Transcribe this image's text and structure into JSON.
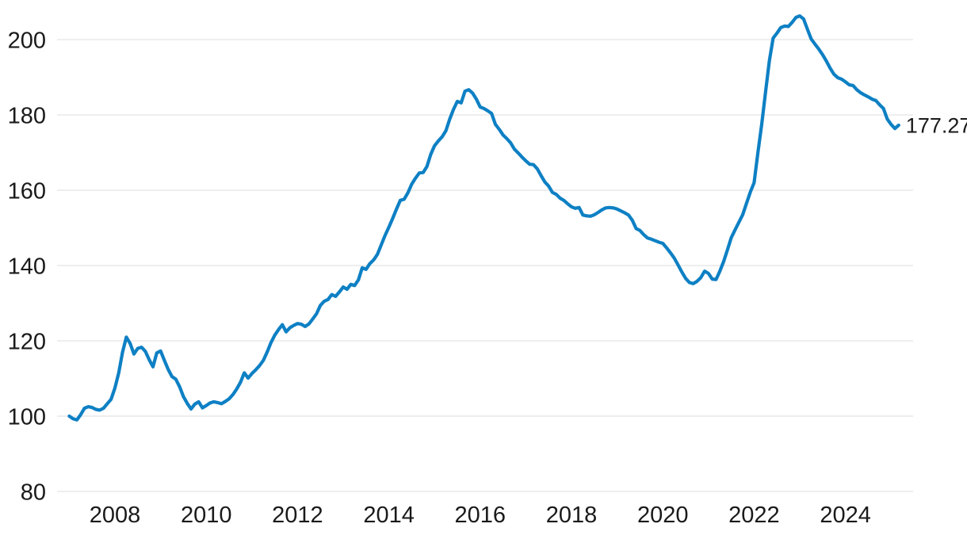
{
  "chart_data": {
    "type": "line",
    "title": "",
    "xlabel": "",
    "ylabel": "",
    "legend": "none",
    "grid": "horizontal",
    "frequency": "monthly",
    "start": {
      "year": 2007,
      "month": 1
    },
    "end": {
      "year": 2025,
      "month": 3
    },
    "x_ticks": [
      "2008",
      "2010",
      "2012",
      "2014",
      "2016",
      "2018",
      "2020",
      "2022",
      "2024"
    ],
    "y_ticks": [
      "80",
      "100",
      "120",
      "140",
      "160",
      "180",
      "200"
    ],
    "ylim": [
      80,
      207
    ],
    "xlim_years": [
      2006.9,
      2025.5
    ],
    "last_value_label": "177.27",
    "colors": {
      "line": "#0e80c4",
      "grid": "#e9e9e9",
      "text": "#1a1a1a",
      "background": "#ffffff"
    },
    "values": [
      100.0,
      99.3,
      99.0,
      100.4,
      102.1,
      102.5,
      102.3,
      101.8,
      101.6,
      102.1,
      103.3,
      104.5,
      107.5,
      111.5,
      117.0,
      121.0,
      119.3,
      116.5,
      118.0,
      118.3,
      117.2,
      115.0,
      113.1,
      116.8,
      117.3,
      114.8,
      112.4,
      110.5,
      109.8,
      107.8,
      105.2,
      103.4,
      101.9,
      103.2,
      103.8,
      102.2,
      102.8,
      103.5,
      103.8,
      103.6,
      103.3,
      103.9,
      104.6,
      105.7,
      107.2,
      109.0,
      111.5,
      110.1,
      111.3,
      112.3,
      113.4,
      114.8,
      117.0,
      119.5,
      121.5,
      123.0,
      124.3,
      122.4,
      123.5,
      124.1,
      124.6,
      124.4,
      123.8,
      124.5,
      125.8,
      127.2,
      129.4,
      130.5,
      131.0,
      132.3,
      131.8,
      133.0,
      134.3,
      133.7,
      135.0,
      134.7,
      136.2,
      139.4,
      139.0,
      140.5,
      141.5,
      143.0,
      145.5,
      148.0,
      150.2,
      152.5,
      155.0,
      157.3,
      157.6,
      159.3,
      161.6,
      163.2,
      164.6,
      164.7,
      166.3,
      169.5,
      171.8,
      173.1,
      174.2,
      175.8,
      178.9,
      181.5,
      183.6,
      183.2,
      186.3,
      186.7,
      185.8,
      184.2,
      182.1,
      181.7,
      181.1,
      180.4,
      177.5,
      176.2,
      174.7,
      173.7,
      172.6,
      170.9,
      169.9,
      168.8,
      167.8,
      166.9,
      166.8,
      165.7,
      163.9,
      162.2,
      161.1,
      159.4,
      158.9,
      157.9,
      157.3,
      156.4,
      155.6,
      155.2,
      155.4,
      153.4,
      153.2,
      153.1,
      153.5,
      154.1,
      154.8,
      155.3,
      155.4,
      155.3,
      155.0,
      154.5,
      154.0,
      153.4,
      152.0,
      149.8,
      149.3,
      148.2,
      147.3,
      147.0,
      146.6,
      146.2,
      145.9,
      144.7,
      143.4,
      142.0,
      140.2,
      138.3,
      136.6,
      135.5,
      135.2,
      135.8,
      136.8,
      138.5,
      137.9,
      136.4,
      136.3,
      138.5,
      141.1,
      144.2,
      147.4,
      149.5,
      151.5,
      153.5,
      156.5,
      159.5,
      162.0,
      170.0,
      177.5,
      186.0,
      194.3,
      200.4,
      201.7,
      203.2,
      203.6,
      203.5,
      204.6,
      205.9,
      206.3,
      205.5,
      202.8,
      200.2,
      198.8,
      197.5,
      196.0,
      194.3,
      192.4,
      190.8,
      189.9,
      189.5,
      188.8,
      188.0,
      187.8,
      186.7,
      185.9,
      185.3,
      184.8,
      184.2,
      183.8,
      182.7,
      181.7,
      178.9,
      177.5,
      176.4,
      177.27
    ]
  }
}
